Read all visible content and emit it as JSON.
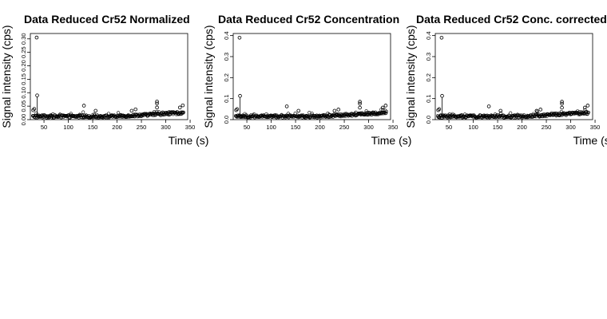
{
  "chart_data": [
    {
      "type": "scatter",
      "title": "Data Reduced Cr52 Normalized",
      "xlabel": "Time (s)",
      "ylabel": "Signal intensity (cps)",
      "xlim": [
        22,
        345
      ],
      "ylim": [
        0,
        0.32
      ],
      "x_ticks": [
        50,
        100,
        150,
        200,
        250,
        300,
        350
      ],
      "y_ticks": [
        0,
        0.05,
        0.1,
        0.15,
        0.2,
        0.25,
        0.3
      ],
      "y_tick_labels": [
        "0.00",
        "0.05",
        "0.10",
        "0.15",
        "0.20",
        "0.25",
        "0.30"
      ],
      "outliers": [
        {
          "x": 28,
          "y": 0.035
        },
        {
          "x": 30,
          "y": 0.04
        },
        {
          "x": 35,
          "y": 0.305
        },
        {
          "x": 36,
          "y": 0.09
        },
        {
          "x": 132,
          "y": 0.052
        },
        {
          "x": 156,
          "y": 0.033
        },
        {
          "x": 230,
          "y": 0.033
        },
        {
          "x": 238,
          "y": 0.038
        },
        {
          "x": 282,
          "y": 0.067
        },
        {
          "x": 282,
          "y": 0.06
        },
        {
          "x": 282,
          "y": 0.045
        },
        {
          "x": 329,
          "y": 0.045
        },
        {
          "x": 335,
          "y": 0.053
        }
      ]
    },
    {
      "type": "scatter",
      "title": "Data Reduced Cr52 Concentration",
      "xlabel": "Time (s)",
      "ylabel": "Signal intensity (cps)",
      "xlim": [
        22,
        345
      ],
      "ylim": [
        0,
        0.41
      ],
      "x_ticks": [
        50,
        100,
        150,
        200,
        250,
        300,
        350
      ],
      "y_ticks": [
        0,
        0.1,
        0.2,
        0.3,
        0.4
      ],
      "y_tick_labels": [
        "0.0",
        "0.1",
        "0.2",
        "0.3",
        "0.4"
      ],
      "outliers": [
        {
          "x": 28,
          "y": 0.045
        },
        {
          "x": 30,
          "y": 0.05
        },
        {
          "x": 35,
          "y": 0.39
        },
        {
          "x": 36,
          "y": 0.113
        },
        {
          "x": 132,
          "y": 0.063
        },
        {
          "x": 156,
          "y": 0.042
        },
        {
          "x": 230,
          "y": 0.042
        },
        {
          "x": 238,
          "y": 0.048
        },
        {
          "x": 282,
          "y": 0.085
        },
        {
          "x": 282,
          "y": 0.076
        },
        {
          "x": 282,
          "y": 0.057
        },
        {
          "x": 329,
          "y": 0.057
        },
        {
          "x": 335,
          "y": 0.067
        }
      ]
    },
    {
      "type": "scatter",
      "title": "Data Reduced Cr52 Conc. corrected",
      "xlabel": "Time (s)",
      "ylabel": "Signal intensity (cps)",
      "xlim": [
        22,
        345
      ],
      "ylim": [
        0,
        0.41
      ],
      "x_ticks": [
        50,
        100,
        150,
        200,
        250,
        300,
        350
      ],
      "y_ticks": [
        0,
        0.1,
        0.2,
        0.3,
        0.4
      ],
      "y_tick_labels": [
        "0.0",
        "0.1",
        "0.2",
        "0.3",
        "0.4"
      ],
      "outliers": [
        {
          "x": 28,
          "y": 0.045
        },
        {
          "x": 30,
          "y": 0.05
        },
        {
          "x": 35,
          "y": 0.39
        },
        {
          "x": 36,
          "y": 0.113
        },
        {
          "x": 132,
          "y": 0.063
        },
        {
          "x": 156,
          "y": 0.042
        },
        {
          "x": 230,
          "y": 0.042
        },
        {
          "x": 238,
          "y": 0.048
        },
        {
          "x": 282,
          "y": 0.085
        },
        {
          "x": 282,
          "y": 0.076
        },
        {
          "x": 282,
          "y": 0.057
        },
        {
          "x": 329,
          "y": 0.057
        },
        {
          "x": 335,
          "y": 0.067
        }
      ]
    }
  ]
}
